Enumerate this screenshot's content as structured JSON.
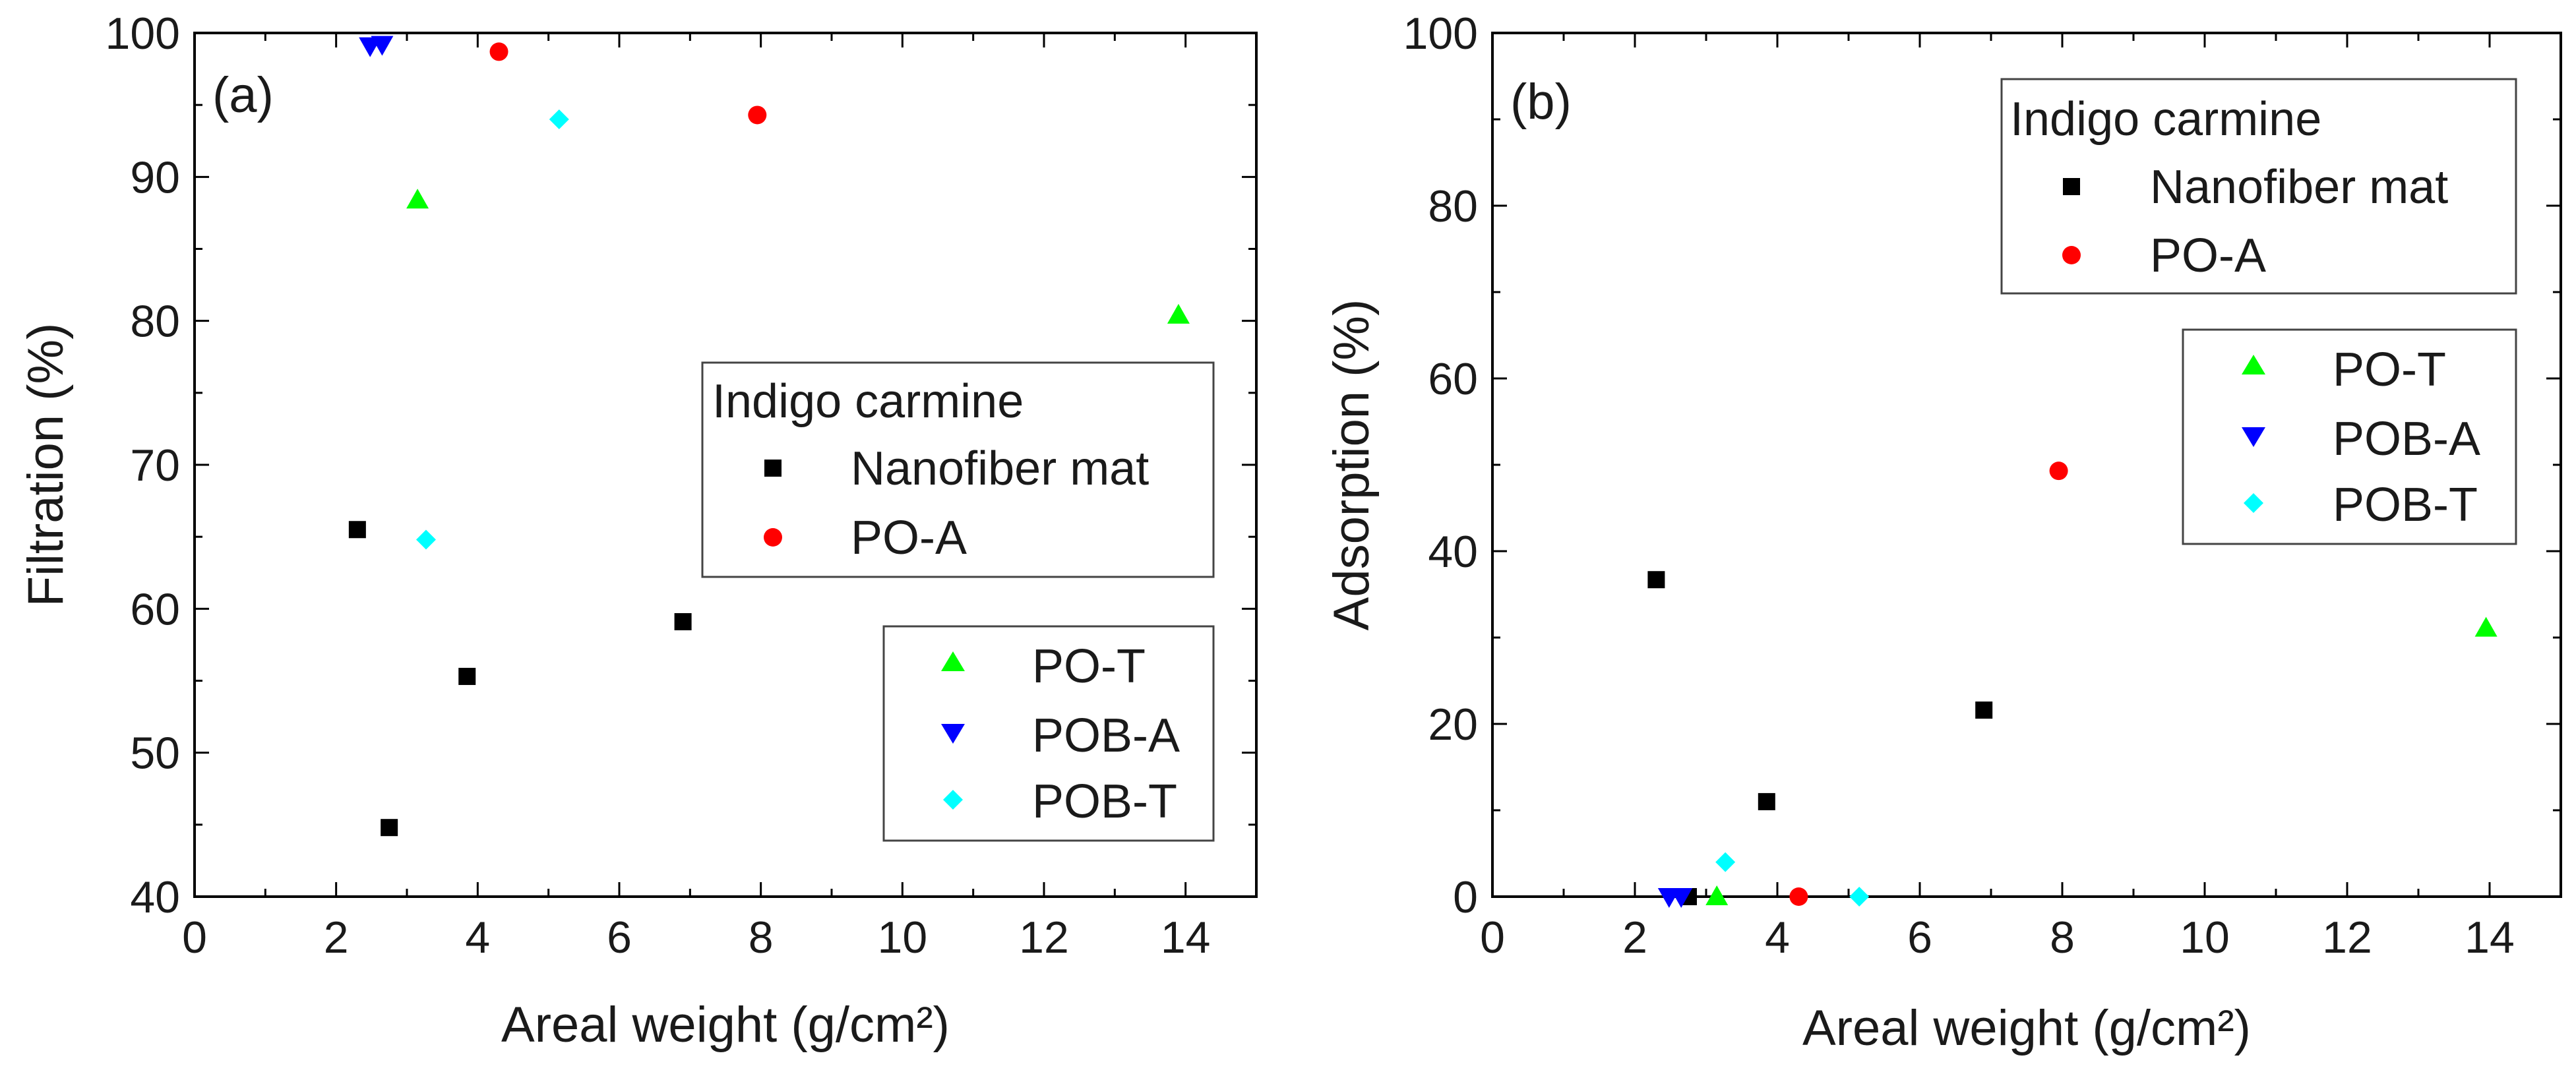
{
  "chart_data": [
    {
      "type": "scatter",
      "panel_label": "(a)",
      "xlabel": "Areal weight (g/cm²)",
      "ylabel": "Filtration (%)",
      "xlim": [
        0,
        15
      ],
      "ylim": [
        40,
        100
      ],
      "xticks": [
        0,
        2,
        4,
        6,
        8,
        10,
        12,
        14
      ],
      "yticks": [
        40,
        50,
        60,
        70,
        80,
        90,
        100
      ],
      "legend_title": "Indigo carmine",
      "legend_position": "center-right and lower-right",
      "series": [
        {
          "name": "Nanofiber mat",
          "marker": "square",
          "color": "#000000",
          "x": [
            2.3,
            2.75,
            3.85,
            6.9
          ],
          "y": [
            65.5,
            44.8,
            55.3,
            59.1
          ]
        },
        {
          "name": "PO-A",
          "marker": "circle",
          "color": "#ff0000",
          "x": [
            4.3,
            7.95
          ],
          "y": [
            98.7,
            94.3
          ]
        },
        {
          "name": "PO-T",
          "marker": "triangle-up",
          "color": "#00ff00",
          "x": [
            3.15,
            13.9
          ],
          "y": [
            88.4,
            80.4
          ]
        },
        {
          "name": "POB-A",
          "marker": "triangle-down",
          "color": "#0000ff",
          "x": [
            2.48,
            2.65
          ],
          "y": [
            99.1,
            99.2
          ]
        },
        {
          "name": "POB-T",
          "marker": "diamond",
          "color": "#00ffff",
          "x": [
            3.27,
            5.15
          ],
          "y": [
            64.8,
            94.0
          ]
        }
      ]
    },
    {
      "type": "scatter",
      "panel_label": "(b)",
      "xlabel": "Areal weight (g/cm²)",
      "ylabel": "Adsorption (%)",
      "xlim": [
        0,
        15
      ],
      "ylim": [
        0,
        100
      ],
      "xticks": [
        0,
        2,
        4,
        6,
        8,
        10,
        12,
        14
      ],
      "yticks": [
        0,
        20,
        40,
        60,
        80,
        100
      ],
      "legend_title": "Indigo carmine",
      "legend_position": "top-right",
      "series": [
        {
          "name": "Nanofiber mat",
          "marker": "square",
          "color": "#000000",
          "x": [
            2.3,
            2.75,
            3.85,
            6.9
          ],
          "y": [
            36.7,
            0.0,
            11.0,
            21.6
          ]
        },
        {
          "name": "PO-A",
          "marker": "circle",
          "color": "#ff0000",
          "x": [
            4.3,
            7.95
          ],
          "y": [
            0.0,
            49.3
          ]
        },
        {
          "name": "PO-T",
          "marker": "triangle-up",
          "color": "#00ff00",
          "x": [
            3.15,
            13.95
          ],
          "y": [
            0.0,
            31.1
          ]
        },
        {
          "name": "POB-A",
          "marker": "triangle-down",
          "color": "#0000ff",
          "x": [
            2.48,
            2.65
          ],
          "y": [
            0.0,
            0.0
          ]
        },
        {
          "name": "POB-T",
          "marker": "diamond",
          "color": "#00ffff",
          "x": [
            3.27,
            5.15
          ],
          "y": [
            4.0,
            0.0
          ]
        }
      ]
    }
  ]
}
